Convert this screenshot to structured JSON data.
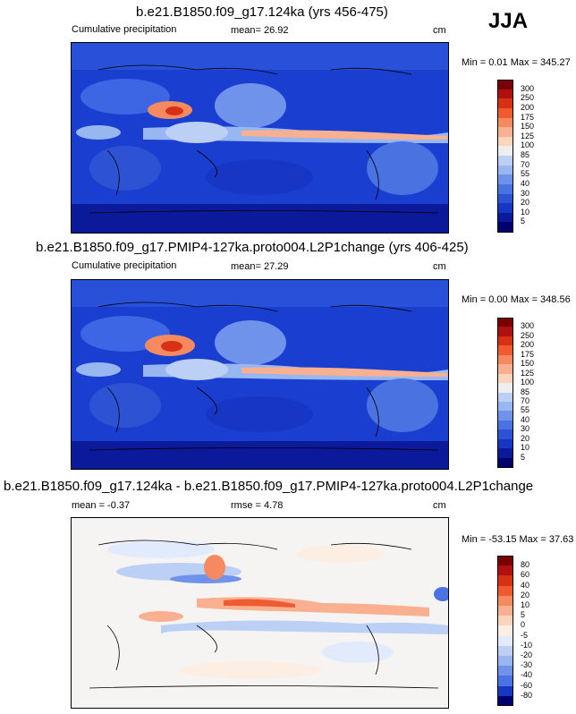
{
  "season": "JJA",
  "panels": [
    {
      "title": "b.e21.B1850.f09_g17.124ka (yrs 456-475)",
      "left_label": "Cumulative precipitation",
      "center_label": "mean=  26.92",
      "unit": "cm",
      "minmax": "Min =   0.01 Max = 345.27",
      "colorbar_labels": [
        "300",
        "250",
        "200",
        "175",
        "150",
        "125",
        "100",
        "85",
        "70",
        "55",
        "40",
        "30",
        "20",
        "10",
        "5"
      ]
    },
    {
      "title": "b.e21.B1850.f09_g17.PMIP4-127ka.proto004.L2P1change (yrs 406-425)",
      "left_label": "Cumulative precipitation",
      "center_label": "mean=  27.29",
      "unit": "cm",
      "minmax": "Min =   0.00 Max = 348.56",
      "colorbar_labels": [
        "300",
        "250",
        "200",
        "175",
        "150",
        "125",
        "100",
        "85",
        "70",
        "55",
        "40",
        "30",
        "20",
        "10",
        "5"
      ]
    },
    {
      "title": "b.e21.B1850.f09_g17.124ka - b.e21.B1850.f09_g17.PMIP4-127ka.proto004.L2P1change",
      "left_label": "mean =  -0.37",
      "center_label": "rmse =   4.78",
      "unit": "cm",
      "minmax": "Min = -53.15 Max =  37.63",
      "colorbar_labels": [
        "80",
        "60",
        "40",
        "20",
        "10",
        "5",
        "0",
        "-5",
        "-10",
        "-20",
        "-30",
        "-40",
        "-60",
        "-80"
      ]
    }
  ],
  "colors": {
    "abs_scale": [
      "#7a0000",
      "#b01010",
      "#d83015",
      "#f05a30",
      "#f58a60",
      "#f9b090",
      "#fbd4bc",
      "#eeeeee",
      "#bcd0f5",
      "#98b6f0",
      "#6f93ea",
      "#4a72e0",
      "#2d53d4",
      "#1736c4",
      "#0a1a9a",
      "#00006e"
    ],
    "diff_scale": [
      "#7a0000",
      "#b01010",
      "#d83015",
      "#f05a30",
      "#f58a60",
      "#f9b090",
      "#fbd4bc",
      "#fdeee4",
      "#e2ebfb",
      "#bcd0f5",
      "#98b6f0",
      "#6f93ea",
      "#4a72e0",
      "#1736c4",
      "#00006e"
    ]
  },
  "chart_data": [
    {
      "type": "heatmap",
      "title": "b.e21.B1850.f09_g17.124ka (yrs 456-475)",
      "variable": "Cumulative precipitation",
      "unit": "cm",
      "season": "JJA",
      "mean": 26.92,
      "min": 0.01,
      "max": 345.27,
      "levels": [
        5,
        10,
        20,
        30,
        40,
        55,
        70,
        85,
        100,
        125,
        150,
        175,
        200,
        250,
        300
      ]
    },
    {
      "type": "heatmap",
      "title": "b.e21.B1850.f09_g17.PMIP4-127ka.proto004.L2P1change (yrs 406-425)",
      "variable": "Cumulative precipitation",
      "unit": "cm",
      "season": "JJA",
      "mean": 27.29,
      "min": 0.0,
      "max": 348.56,
      "levels": [
        5,
        10,
        20,
        30,
        40,
        55,
        70,
        85,
        100,
        125,
        150,
        175,
        200,
        250,
        300
      ]
    },
    {
      "type": "heatmap",
      "title": "b.e21.B1850.f09_g17.124ka - b.e21.B1850.f09_g17.PMIP4-127ka.proto004.L2P1change",
      "unit": "cm",
      "season": "JJA",
      "mean": -0.37,
      "rmse": 4.78,
      "min": -53.15,
      "max": 37.63,
      "levels": [
        -80,
        -60,
        -40,
        -30,
        -20,
        -10,
        -5,
        0,
        5,
        10,
        20,
        40,
        60,
        80
      ]
    }
  ]
}
